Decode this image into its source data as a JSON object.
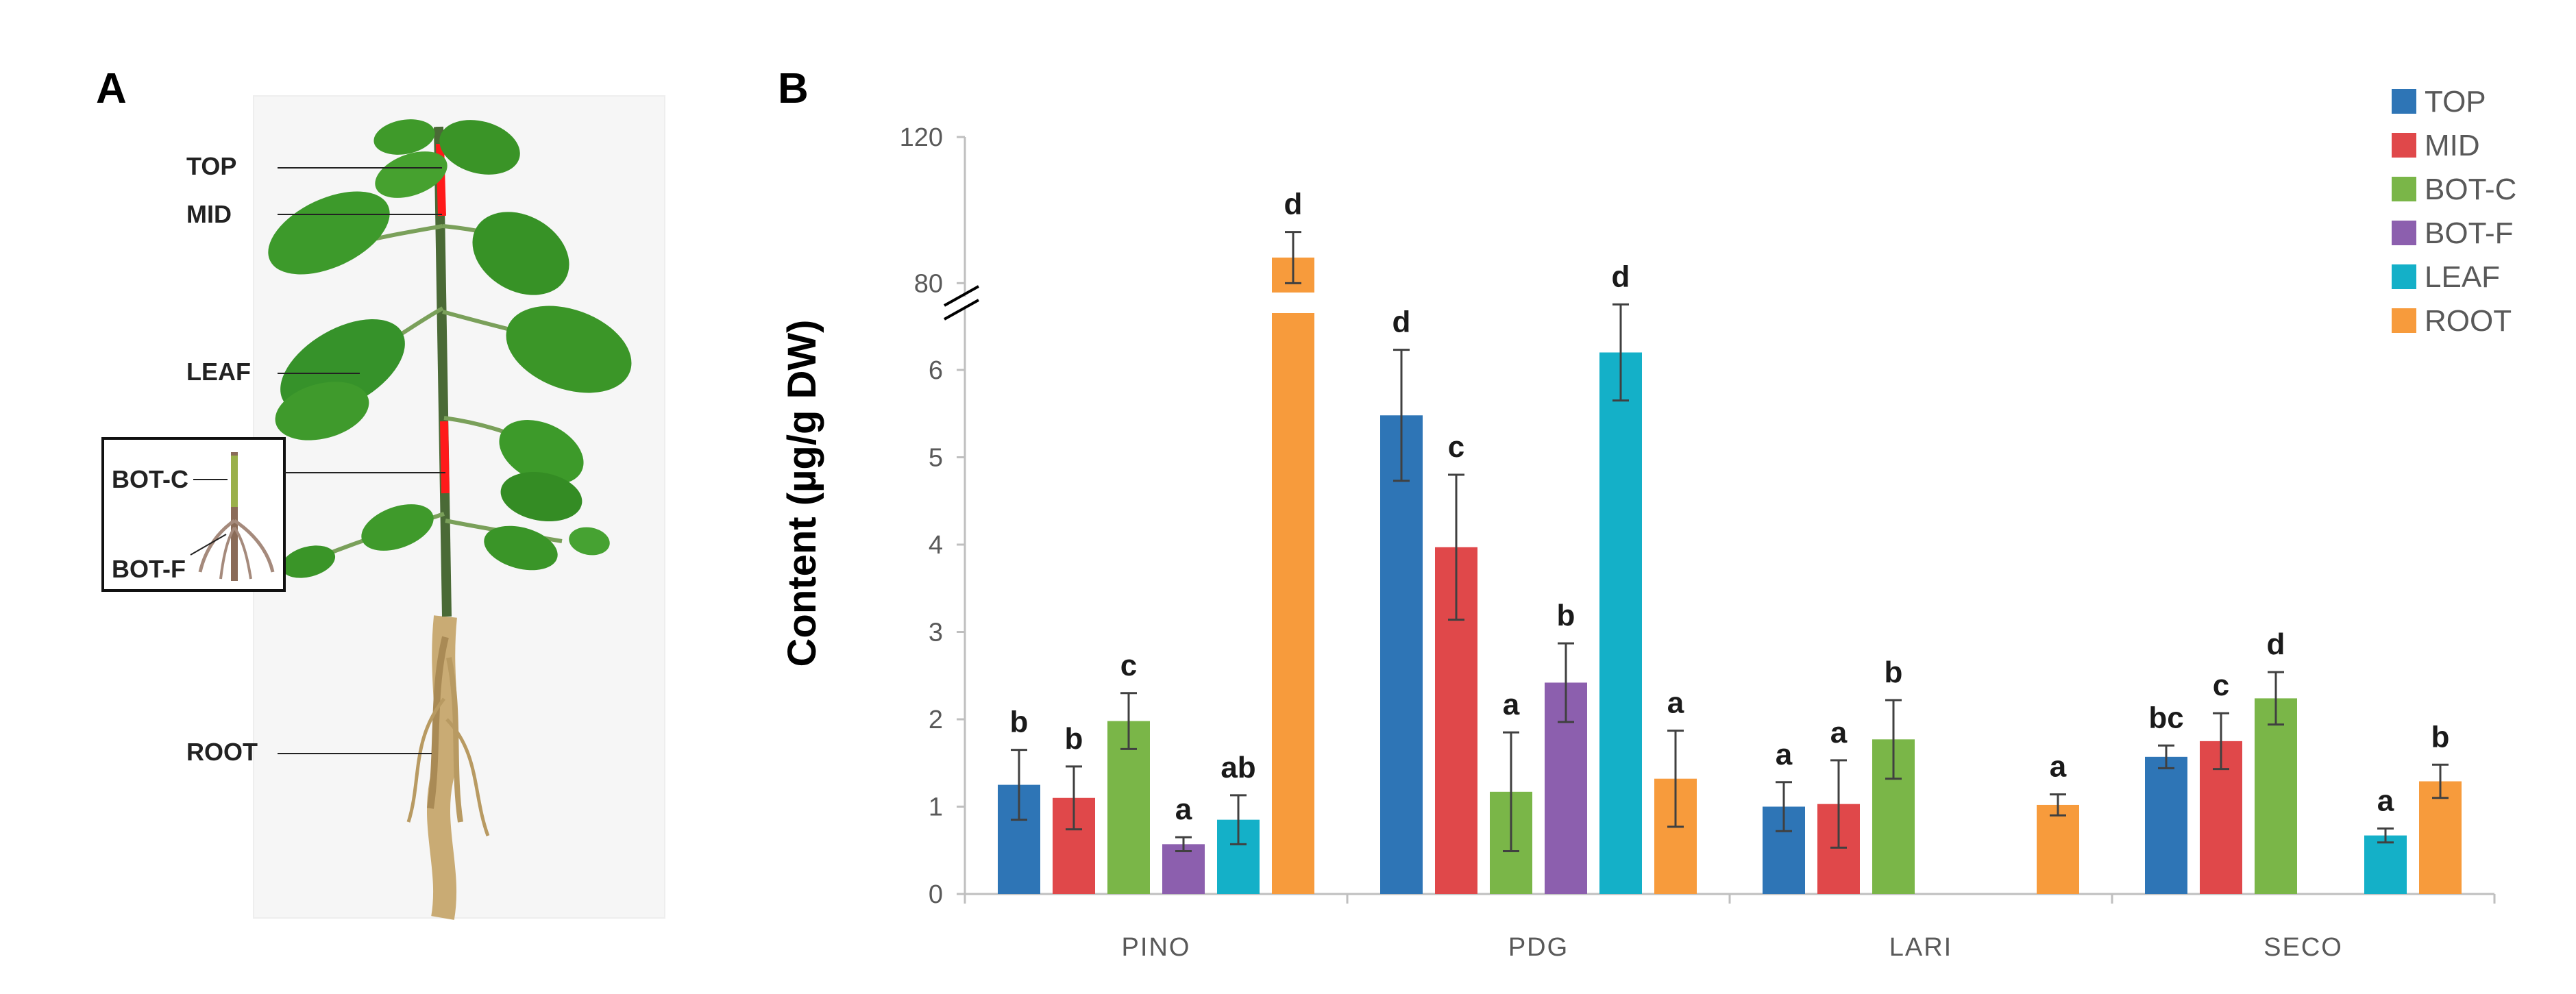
{
  "panels": {
    "a": {
      "letter": "A",
      "labels": {
        "top": "TOP",
        "mid": "MID",
        "leaf": "LEAF",
        "botc": "BOT-C",
        "botf": "BOT-F",
        "root": "ROOT"
      }
    },
    "b": {
      "letter": "B"
    }
  },
  "colors": {
    "TOP": "#2e75b6",
    "MID": "#e0484a",
    "BOT-C": "#7ab648",
    "BOT-F": "#8c5fae",
    "LEAF": "#14b0c8",
    "ROOT": "#f79b3c"
  },
  "chart_data": {
    "type": "bar",
    "title": "",
    "xlabel": "",
    "ylabel": "Content (µg/g DW)",
    "categories": [
      "PINO",
      "PDG",
      "LARI",
      "SECO"
    ],
    "y_ticks_lower": [
      "0",
      "1",
      "2",
      "3",
      "4",
      "5",
      "6"
    ],
    "y_ticks_upper": [
      "80",
      "120"
    ],
    "ylim_lower": [
      0,
      7
    ],
    "ylim_upper": [
      75,
      120
    ],
    "axis_break": true,
    "legend_position": "top-right",
    "series": [
      {
        "name": "TOP",
        "values": [
          1.25,
          5.48,
          1.0,
          1.57
        ],
        "errors": [
          0.4,
          0.75,
          0.28,
          0.13
        ],
        "letters": [
          "b",
          "d",
          "a",
          "bc"
        ]
      },
      {
        "name": "MID",
        "values": [
          1.1,
          3.97,
          1.03,
          1.75
        ],
        "errors": [
          0.36,
          0.83,
          0.5,
          0.32
        ],
        "letters": [
          "b",
          "c",
          "a",
          "c"
        ]
      },
      {
        "name": "BOT-C",
        "values": [
          1.98,
          1.17,
          1.77,
          2.24
        ],
        "errors": [
          0.32,
          0.68,
          0.45,
          0.3
        ],
        "letters": [
          "c",
          "a",
          "b",
          "d"
        ]
      },
      {
        "name": "BOT-F",
        "values": [
          0.57,
          2.42,
          null,
          null
        ],
        "errors": [
          0.08,
          0.45,
          null,
          null
        ],
        "letters": [
          "a",
          "b",
          "",
          ""
        ]
      },
      {
        "name": "LEAF",
        "values": [
          0.85,
          6.2,
          null,
          0.67
        ],
        "errors": [
          0.28,
          0.55,
          null,
          0.08
        ],
        "letters": [
          "ab",
          "d",
          "",
          "a"
        ]
      },
      {
        "name": "ROOT",
        "values": [
          87.0,
          1.32,
          1.02,
          1.29
        ],
        "errors": [
          7.0,
          0.55,
          0.12,
          0.19
        ],
        "letters": [
          "d",
          "a",
          "a",
          "b"
        ]
      }
    ]
  }
}
